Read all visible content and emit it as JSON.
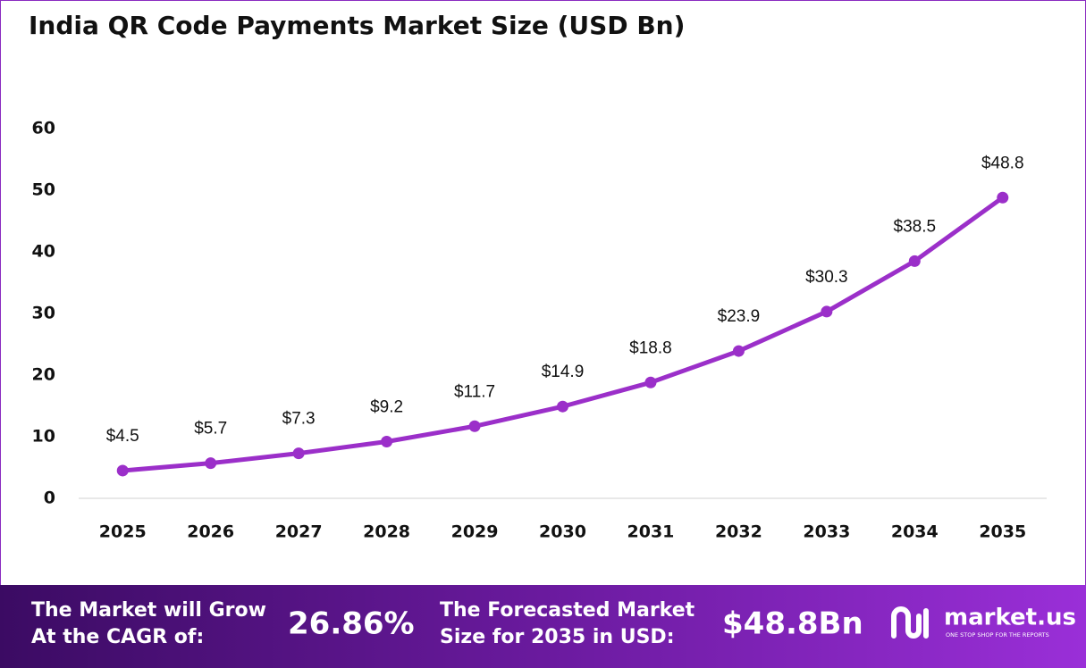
{
  "chart_data": {
    "type": "line",
    "title": "India QR Code Payments Market Size (USD Bn)",
    "categories": [
      "2025",
      "2026",
      "2027",
      "2028",
      "2029",
      "2030",
      "2031",
      "2032",
      "2033",
      "2034",
      "2035"
    ],
    "values": [
      4.5,
      5.7,
      7.3,
      9.2,
      11.7,
      14.9,
      18.8,
      23.9,
      30.3,
      38.5,
      48.8
    ],
    "value_labels": [
      "$4.5",
      "$5.7",
      "$7.3",
      "$9.2",
      "$11.7",
      "$14.9",
      "$18.8",
      "$23.9",
      "$30.3",
      "$38.5",
      "$48.8"
    ],
    "color": "#9b2fc9",
    "ylim": [
      0,
      60
    ],
    "yticks": [
      0,
      10,
      20,
      30,
      40,
      50,
      60
    ],
    "grid": false
  },
  "footer": {
    "cagr_label": [
      "The Market will Grow",
      "At the CAGR of:"
    ],
    "cagr_value": "26.86%",
    "forecast_label": [
      "The Forecasted Market",
      "Size for 2035 in USD:"
    ],
    "forecast_value": "$48.8Bn",
    "brand": "market.us",
    "tagline": "ONE STOP SHOP FOR THE REPORTS"
  }
}
